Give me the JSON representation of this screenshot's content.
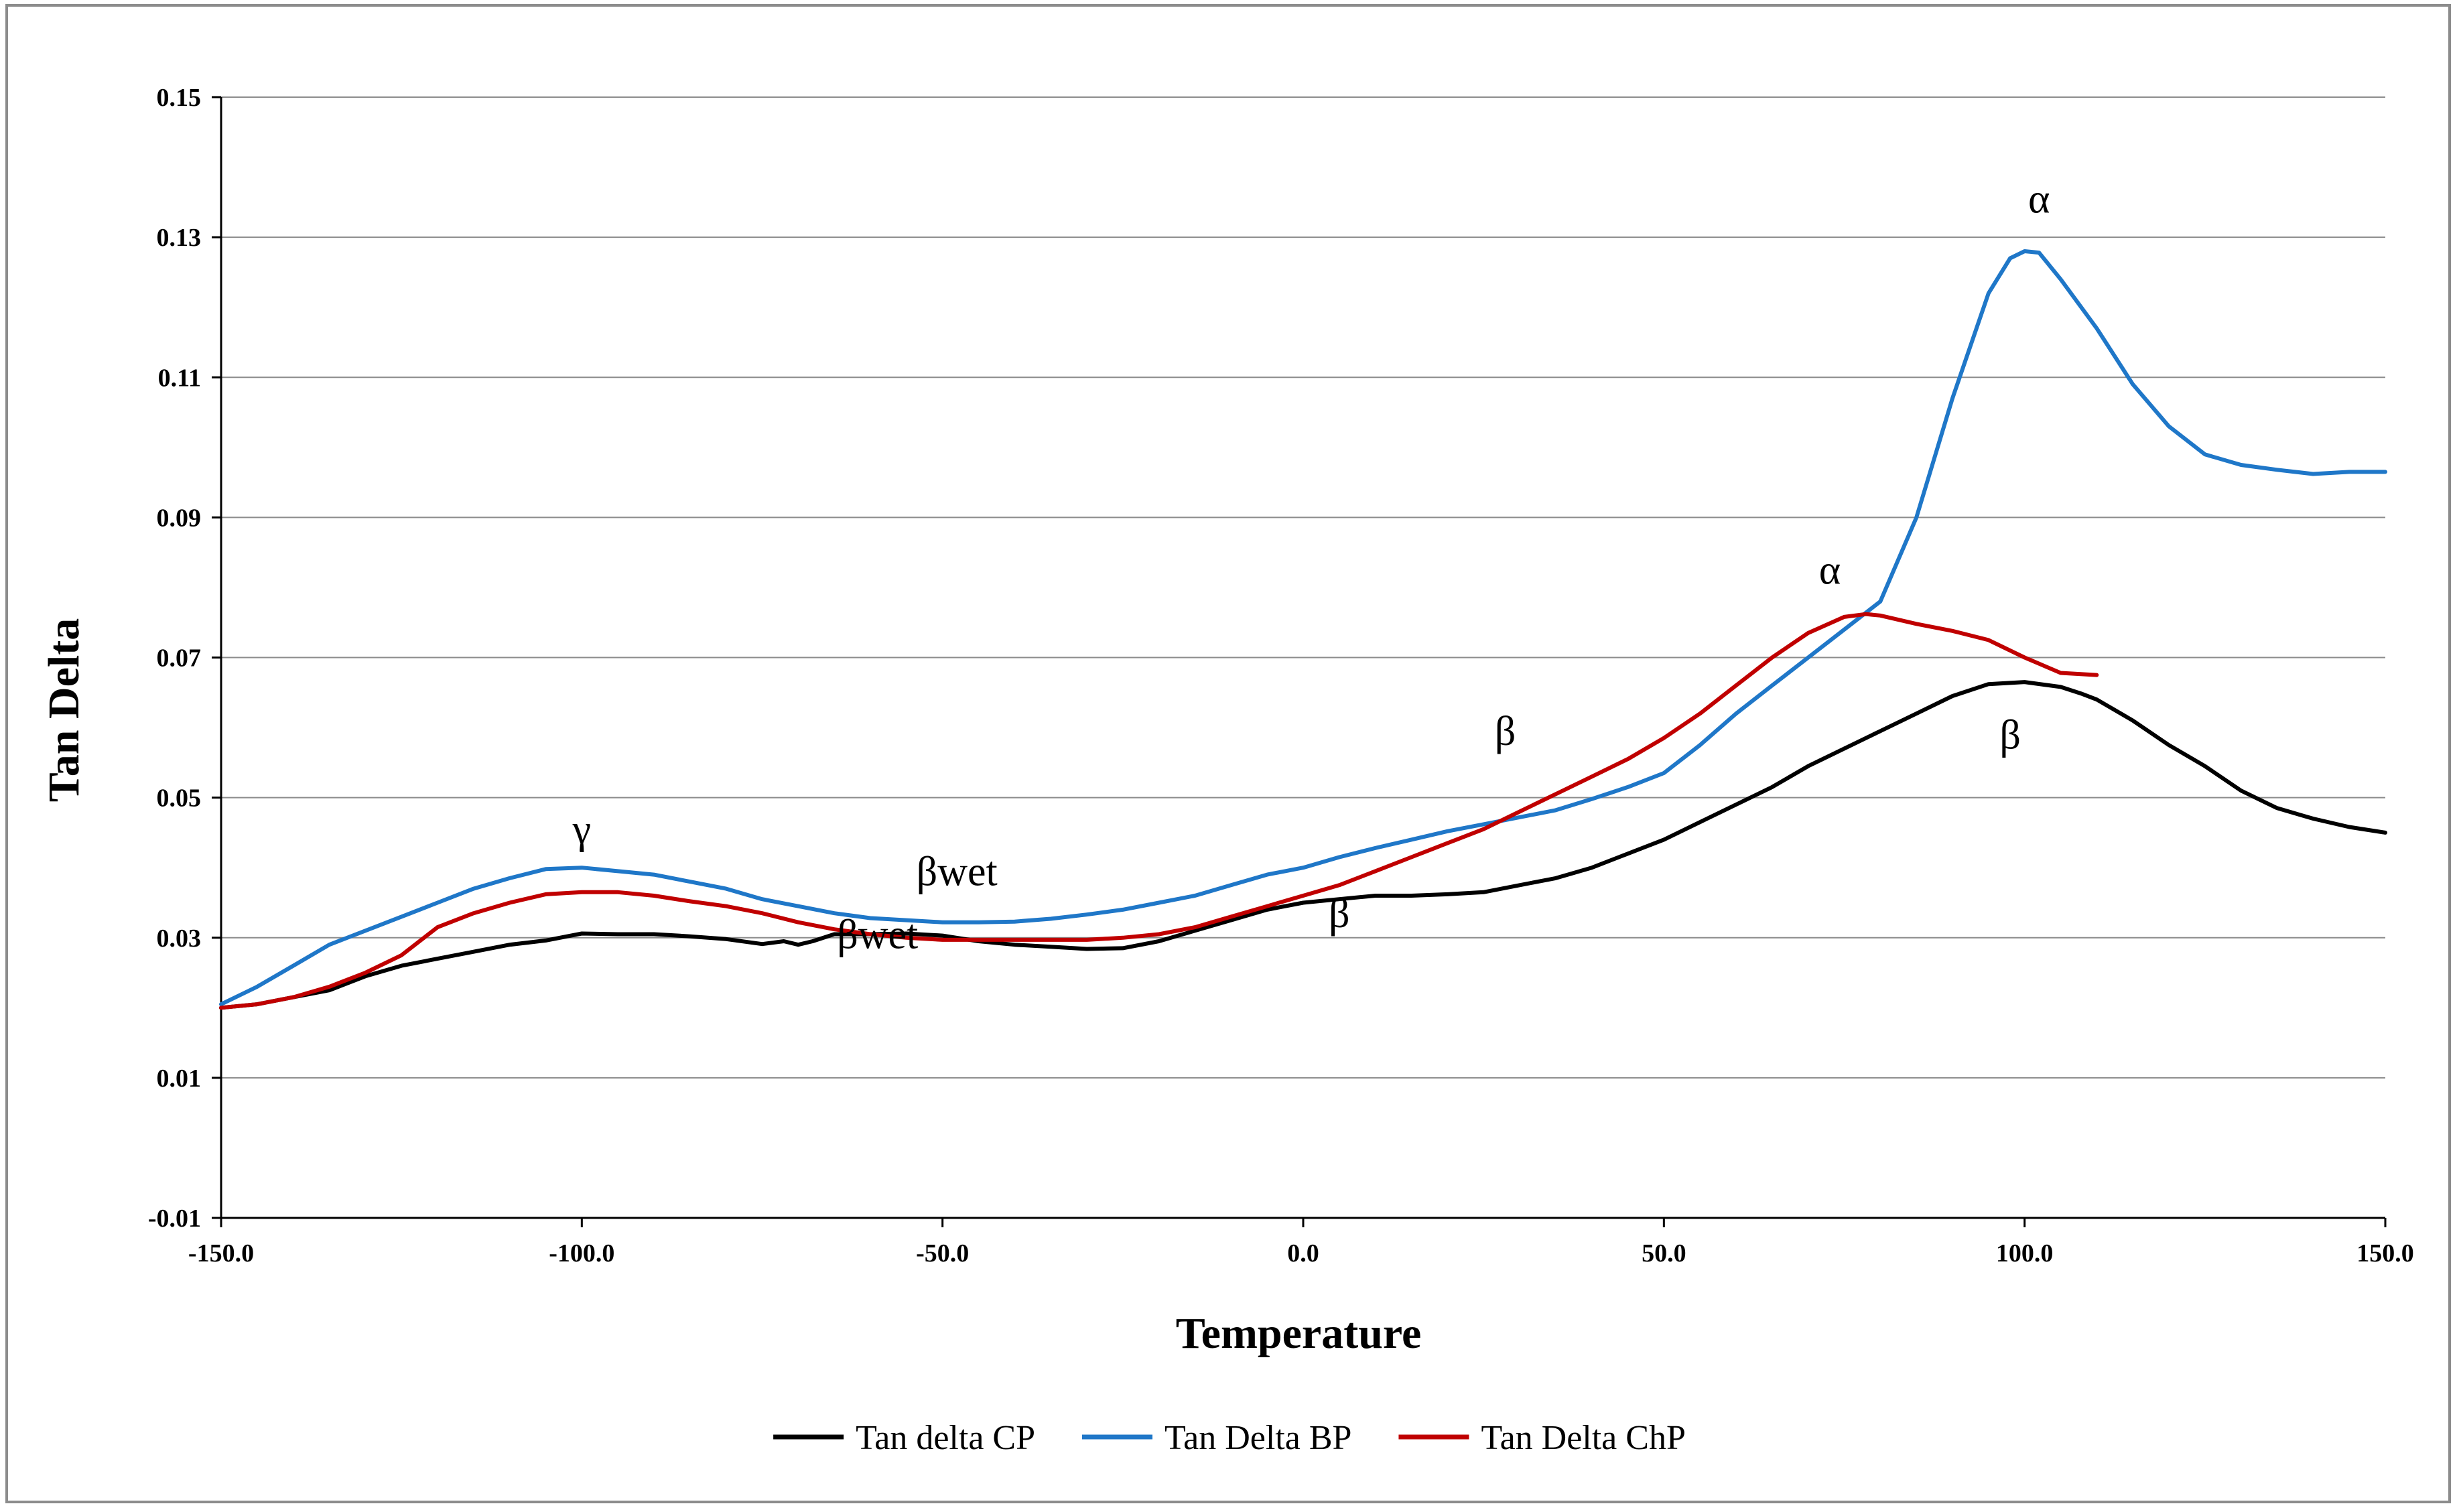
{
  "chart_data": {
    "type": "line",
    "title": "",
    "xlabel": "Temperature",
    "ylabel": "Tan Delta",
    "xlim": [
      -150,
      150
    ],
    "ylim": [
      -0.01,
      0.15
    ],
    "x_ticks": [
      -150,
      -100,
      -50,
      0,
      50,
      100,
      150
    ],
    "x_tick_labels": [
      "-150.0",
      "-100.0",
      "-50.0",
      "0.0",
      "50.0",
      "100.0",
      "150.0"
    ],
    "y_ticks": [
      -0.01,
      0.01,
      0.03,
      0.05,
      0.07,
      0.09,
      0.11,
      0.13,
      0.15
    ],
    "y_tick_labels": [
      "-0.01",
      "0.01",
      "0.03",
      "0.05",
      "0.07",
      "0.09",
      "0.11",
      "0.13",
      "0.15"
    ],
    "grid": "horizontal",
    "legend_position": "bottom",
    "series": [
      {
        "name": "Tan delta CP",
        "color": "#000000",
        "x": [
          -150,
          -145,
          -140,
          -135,
          -130,
          -125,
          -120,
          -115,
          -110,
          -105,
          -100,
          -95,
          -90,
          -85,
          -80,
          -75,
          -72,
          -70,
          -68,
          -65,
          -60,
          -55,
          -50,
          -45,
          -40,
          -35,
          -30,
          -25,
          -20,
          -15,
          -10,
          -5,
          0,
          5,
          10,
          15,
          20,
          25,
          30,
          35,
          40,
          45,
          50,
          55,
          60,
          65,
          70,
          75,
          80,
          85,
          90,
          95,
          100,
          105,
          108,
          110,
          115,
          120,
          125,
          130,
          135,
          140,
          145,
          150
        ],
        "y": [
          0.02,
          0.0205,
          0.0215,
          0.0225,
          0.0245,
          0.026,
          0.027,
          0.028,
          0.029,
          0.0296,
          0.0306,
          0.0305,
          0.0305,
          0.0302,
          0.0298,
          0.0291,
          0.0295,
          0.029,
          0.0295,
          0.0305,
          0.0305,
          0.0306,
          0.0303,
          0.0295,
          0.029,
          0.0287,
          0.0284,
          0.0285,
          0.0295,
          0.031,
          0.0325,
          0.034,
          0.035,
          0.0355,
          0.036,
          0.036,
          0.0362,
          0.0365,
          0.0375,
          0.0385,
          0.04,
          0.042,
          0.044,
          0.0465,
          0.049,
          0.0515,
          0.0545,
          0.057,
          0.0595,
          0.062,
          0.0645,
          0.0662,
          0.0665,
          0.0658,
          0.0648,
          0.064,
          0.061,
          0.0575,
          0.0545,
          0.051,
          0.0485,
          0.047,
          0.0458,
          0.045
        ]
      },
      {
        "name": "Tan Delta BP",
        "color": "#1f77c8",
        "x": [
          -150,
          -145,
          -140,
          -135,
          -130,
          -125,
          -120,
          -115,
          -110,
          -105,
          -100,
          -95,
          -90,
          -85,
          -80,
          -75,
          -70,
          -65,
          -60,
          -55,
          -50,
          -45,
          -40,
          -35,
          -30,
          -25,
          -20,
          -15,
          -10,
          -5,
          0,
          5,
          10,
          15,
          20,
          25,
          30,
          35,
          40,
          45,
          50,
          55,
          60,
          65,
          70,
          75,
          80,
          85,
          90,
          95,
          98,
          100,
          102,
          105,
          110,
          115,
          120,
          125,
          130,
          135,
          140,
          145,
          150
        ],
        "y": [
          0.0205,
          0.023,
          0.026,
          0.029,
          0.031,
          0.033,
          0.035,
          0.037,
          0.0385,
          0.0398,
          0.04,
          0.0395,
          0.039,
          0.038,
          0.037,
          0.0355,
          0.0345,
          0.0335,
          0.0328,
          0.0325,
          0.0322,
          0.0322,
          0.0323,
          0.0327,
          0.0333,
          0.034,
          0.035,
          0.036,
          0.0375,
          0.039,
          0.04,
          0.0415,
          0.0428,
          0.044,
          0.0452,
          0.0462,
          0.0472,
          0.0482,
          0.0498,
          0.0515,
          0.0535,
          0.0575,
          0.062,
          0.066,
          0.07,
          0.074,
          0.078,
          0.09,
          0.107,
          0.122,
          0.127,
          0.128,
          0.1278,
          0.124,
          0.117,
          0.109,
          0.103,
          0.099,
          0.0975,
          0.0968,
          0.0962,
          0.0965,
          0.0965
        ]
      },
      {
        "name": "Tan Delta ChP",
        "color": "#c00000",
        "x": [
          -150,
          -145,
          -140,
          -135,
          -130,
          -125,
          -120,
          -115,
          -110,
          -105,
          -100,
          -95,
          -90,
          -85,
          -80,
          -75,
          -70,
          -65,
          -60,
          -55,
          -50,
          -45,
          -40,
          -35,
          -30,
          -25,
          -20,
          -15,
          -10,
          -5,
          0,
          5,
          10,
          15,
          20,
          25,
          30,
          35,
          40,
          45,
          50,
          55,
          60,
          65,
          70,
          75,
          78,
          80,
          85,
          90,
          95,
          100,
          105,
          110
        ],
        "y": [
          0.02,
          0.0205,
          0.0215,
          0.023,
          0.025,
          0.0275,
          0.0315,
          0.0335,
          0.035,
          0.0362,
          0.0365,
          0.0365,
          0.036,
          0.0352,
          0.0345,
          0.0335,
          0.0322,
          0.0312,
          0.0305,
          0.03,
          0.0297,
          0.0297,
          0.0297,
          0.0297,
          0.0297,
          0.03,
          0.0305,
          0.0315,
          0.033,
          0.0345,
          0.036,
          0.0375,
          0.0395,
          0.0415,
          0.0435,
          0.0455,
          0.048,
          0.0505,
          0.053,
          0.0555,
          0.0585,
          0.062,
          0.066,
          0.07,
          0.0735,
          0.0758,
          0.0762,
          0.076,
          0.0748,
          0.0738,
          0.0725,
          0.07,
          0.0678,
          0.0675
        ]
      }
    ],
    "annotations": [
      {
        "text": "γ",
        "x": -100,
        "y": 0.0435
      },
      {
        "text": "βwet",
        "x": -48,
        "y": 0.0375
      },
      {
        "text": "βwet",
        "x": -59,
        "y": 0.0285
      },
      {
        "text": "β",
        "x": 5,
        "y": 0.0315
      },
      {
        "text": "β",
        "x": 28,
        "y": 0.0575
      },
      {
        "text": "β",
        "x": 98,
        "y": 0.057
      },
      {
        "text": "α",
        "x": 73,
        "y": 0.0805
      },
      {
        "text": "α",
        "x": 102,
        "y": 0.1335
      }
    ]
  }
}
